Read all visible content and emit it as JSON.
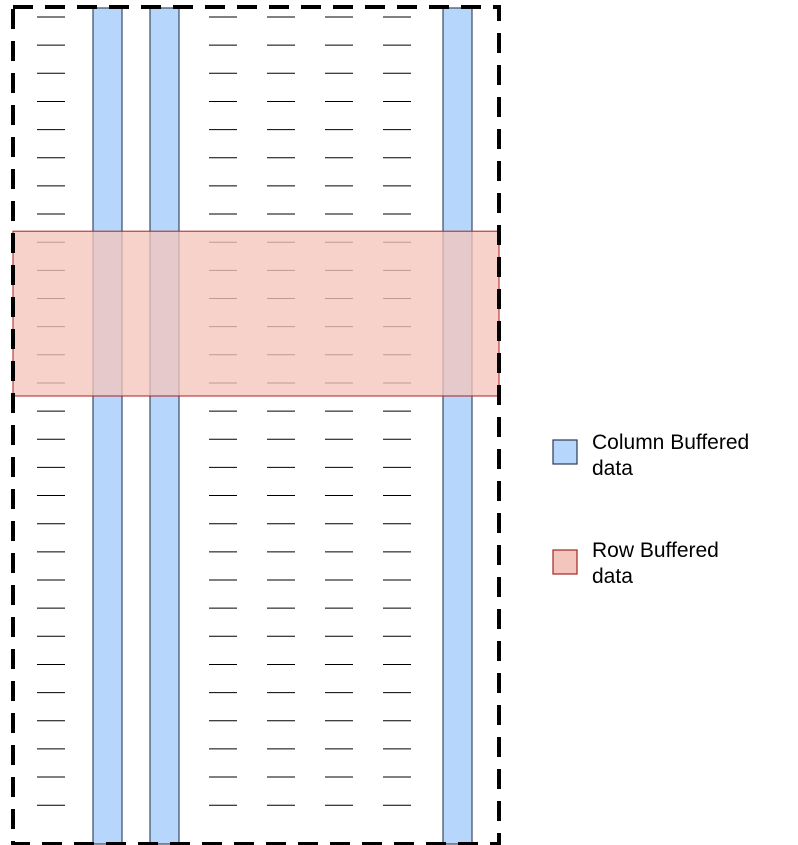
{
  "diagram": {
    "grid": {
      "rows": 29,
      "columns": 8
    },
    "column_buffered": {
      "columns": [
        2,
        3,
        8
      ],
      "fill": "#b7d6fb",
      "stroke": "#3a4a66"
    },
    "row_buffered": {
      "rows": [
        9,
        10,
        11,
        12,
        13,
        14
      ],
      "fill": "#f4c5bd",
      "stroke": "#b21e1e"
    },
    "border": {
      "color": "#000000",
      "style": "dashed"
    }
  },
  "legend": {
    "items": [
      {
        "id": "column",
        "lines": [
          "Column Buffered",
          "data"
        ],
        "swatch_fill": "#b7d6fb",
        "swatch_stroke": "#2b3a55"
      },
      {
        "id": "row",
        "lines": [
          "Row Buffered",
          "data"
        ],
        "swatch_fill": "#f4c5bd",
        "swatch_stroke": "#a0261e"
      }
    ]
  }
}
